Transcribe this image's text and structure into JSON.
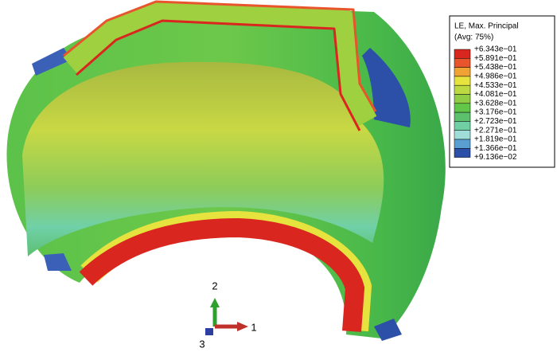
{
  "legend": {
    "title": "LE, Max. Principal",
    "subtitle": "(Avg: 75%)",
    "labels": [
      "+6.343e−01",
      "+5.891e−01",
      "+5.438e−01",
      "+4.986e−01",
      "+4.533e−01",
      "+4.081e−01",
      "+3.628e−01",
      "+3.176e−01",
      "+2.723e−01",
      "+2.271e−01",
      "+1.819e−01",
      "+1.366e−01",
      "+9.136e−02"
    ],
    "colors": [
      "#d9261f",
      "#e8552c",
      "#f0a232",
      "#e6e23e",
      "#bcd942",
      "#90cd44",
      "#62c648",
      "#5cc06c",
      "#70d0a4",
      "#a0dcd8",
      "#5a9fd2",
      "#2c4fa8"
    ]
  },
  "triad": {
    "axis_1": "1",
    "axis_2": "2",
    "axis_3": "3"
  }
}
